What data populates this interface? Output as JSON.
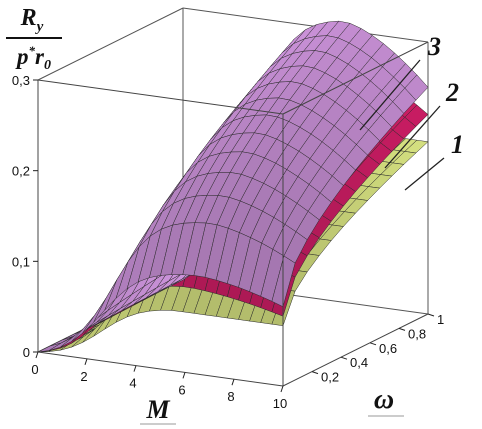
{
  "chart_data": {
    "type": "surface",
    "title": "",
    "zlabel": {
      "numerator": "R",
      "numerator_sub": "y",
      "denominator": "p",
      "denominator_sup": "*",
      "denominator_r": "r",
      "denominator_sub": "0"
    },
    "xlabel": "M",
    "ylabel": "ω",
    "x_ticks": [
      "0",
      "2",
      "4",
      "6",
      "8",
      "10"
    ],
    "y_ticks": [
      "0,2",
      "0,4",
      "0,6",
      "0,8",
      "1"
    ],
    "z_ticks": [
      "0",
      "0,1",
      "0,2",
      "0,3"
    ],
    "xlim": [
      0,
      10
    ],
    "ylim": [
      0,
      1
    ],
    "zlim": [
      0,
      0.3
    ],
    "series": [
      {
        "name": "1",
        "color": "#e6f28a",
        "peak_M": 5.5,
        "peak_value": 0.19,
        "value_at_M0_omega0": 0.0,
        "value_at_M10_omega1": 0.19
      },
      {
        "name": "2",
        "color": "#e0206e",
        "peak_M": 6.0,
        "peak_value": 0.27,
        "value_at_M0_omega0": 0.0,
        "value_at_M10_omega1": 0.22
      },
      {
        "name": "3",
        "color": "#d79be6",
        "peak_M": 6.5,
        "peak_value": 0.31,
        "value_at_M0_omega0": 0.0,
        "value_at_M10_omega1": 0.25
      }
    ],
    "legend": [
      "1",
      "2",
      "3"
    ],
    "grid": false,
    "legend_placement": "right"
  }
}
